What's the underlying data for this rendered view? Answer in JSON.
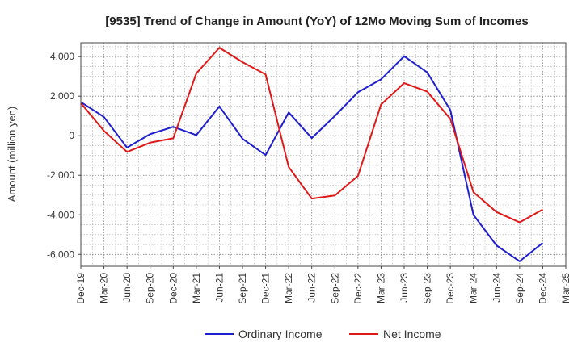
{
  "chart_data": {
    "type": "line",
    "title": "[9535]  Trend of Change in Amount (YoY) of 12Mo Moving Sum of Incomes",
    "xlabel": "",
    "ylabel": "Amount (million yen)",
    "ylim": [
      -6600,
      4700
    ],
    "yticks": [
      4000,
      2000,
      0,
      -2000,
      -4000,
      -6000
    ],
    "ytick_labels": [
      "4,000",
      "2,000",
      "0",
      "-2,000",
      "-4,000",
      "-6,000"
    ],
    "categories": [
      "Dec-19",
      "Mar-20",
      "Jun-20",
      "Sep-20",
      "Dec-20",
      "Mar-21",
      "Jun-21",
      "Sep-21",
      "Dec-21",
      "Mar-22",
      "Jun-22",
      "Sep-22",
      "Dec-22",
      "Mar-23",
      "Jun-23",
      "Sep-23",
      "Dec-23",
      "Mar-24",
      "Jun-24",
      "Sep-24",
      "Dec-24",
      "Mar-25"
    ],
    "grid": true,
    "legend_position": "bottom",
    "series": [
      {
        "name": "Ordinary Income",
        "color": "#1f1fd0",
        "values": [
          1700,
          950,
          -600,
          80,
          450,
          30,
          1480,
          -150,
          -980,
          1180,
          -120,
          1000,
          2200,
          2850,
          4020,
          3200,
          1300,
          -4000,
          -5550,
          -6350,
          -5420,
          null
        ]
      },
      {
        "name": "Net Income",
        "color": "#e01818",
        "values": [
          1650,
          250,
          -820,
          -350,
          -130,
          3150,
          4450,
          3720,
          3100,
          -1580,
          -3180,
          -3020,
          -2030,
          1580,
          2660,
          2230,
          850,
          -2850,
          -3860,
          -4380,
          -3730,
          null
        ]
      }
    ]
  }
}
